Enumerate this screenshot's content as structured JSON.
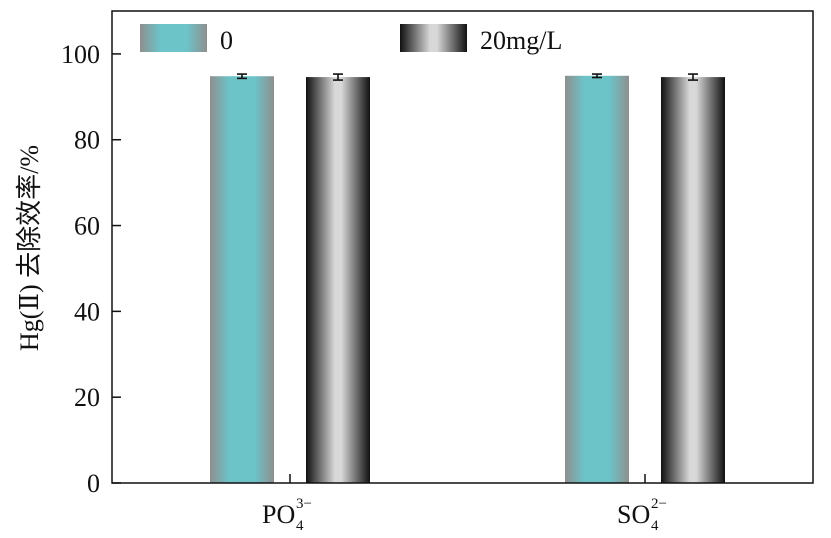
{
  "chart_data": {
    "type": "bar",
    "title": "",
    "xlabel": "",
    "ylabel": "Hg(Ⅱ) 去除效率/%",
    "ylim": [
      0,
      110
    ],
    "yticks": [
      0,
      20,
      40,
      60,
      80,
      100
    ],
    "grid": false,
    "legend_position": "top",
    "categories": [
      {
        "base": "PO",
        "sub": "4",
        "sup": "3−"
      },
      {
        "base": "SO",
        "sub": "4",
        "sup": "2−"
      }
    ],
    "series": [
      {
        "name": "0",
        "values": [
          94.8,
          94.9
        ],
        "errors": [
          0.5,
          0.4
        ],
        "color": "#6cc3c8",
        "edge_color": "#8f8f8f"
      },
      {
        "name": "20mg/L",
        "values": [
          94.6,
          94.6
        ],
        "errors": [
          0.7,
          0.7
        ],
        "color": "#d8d8d8",
        "edge_color": "#111111"
      }
    ]
  }
}
